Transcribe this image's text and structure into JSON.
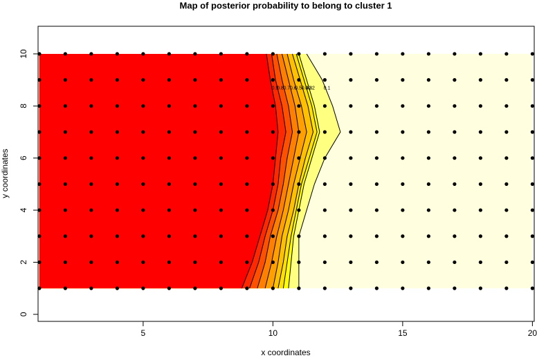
{
  "chart_data": {
    "type": "filled-contour",
    "title": "Map of posterior probability to belong to cluster  1",
    "x_label": "x coordinates",
    "y_label": "y coordinates",
    "xlim": [
      0.95,
      20.07
    ],
    "ylim": [
      -0.27,
      11.06
    ],
    "xticks": [
      5,
      10,
      15,
      20
    ],
    "yticks": [
      0,
      2,
      4,
      6,
      8,
      10
    ],
    "points_x": [
      1,
      2,
      3,
      4,
      5,
      6,
      7,
      8,
      9,
      10,
      11,
      12,
      13,
      14,
      15,
      16,
      17,
      18,
      19,
      20
    ],
    "points_y": [
      1,
      2,
      3,
      4,
      5,
      6,
      7,
      8,
      9,
      10
    ],
    "band_colors": [
      "#FFFFE0",
      "#FFFF80",
      "#FFFF00",
      "#FFE000",
      "#FFC000",
      "#FFA000",
      "#FF8000",
      "#FF5000",
      "#FF2800",
      "#FF0000"
    ],
    "contour_y": [
      1,
      2,
      3,
      4,
      5,
      6,
      7,
      8,
      9,
      10
    ],
    "contours": [
      {
        "level": 0.1,
        "x": [
          11.0,
          11.0,
          11.0,
          11.3,
          11.6,
          12.0,
          12.6,
          12.3,
          11.9,
          11.3
        ]
      },
      {
        "level": 0.2,
        "x": [
          10.6,
          10.7,
          10.8,
          11.0,
          11.2,
          11.5,
          11.8,
          11.6,
          11.3,
          11.0
        ]
      },
      {
        "level": 0.3,
        "x": [
          10.4,
          10.55,
          10.7,
          10.9,
          11.1,
          11.4,
          11.7,
          11.5,
          11.2,
          10.9
        ]
      },
      {
        "level": 0.4,
        "x": [
          10.2,
          10.4,
          10.55,
          10.8,
          11.0,
          11.25,
          11.55,
          11.35,
          11.05,
          10.75
        ]
      },
      {
        "level": 0.5,
        "x": [
          10.0,
          10.2,
          10.35,
          10.6,
          10.8,
          11.05,
          11.3,
          11.1,
          10.8,
          10.55
        ]
      },
      {
        "level": 0.6,
        "x": [
          9.7,
          9.95,
          10.15,
          10.4,
          10.6,
          10.8,
          11.0,
          10.85,
          10.6,
          10.35
        ]
      },
      {
        "level": 0.7,
        "x": [
          9.4,
          9.7,
          9.9,
          10.2,
          10.4,
          10.55,
          10.75,
          10.6,
          10.35,
          10.15
        ]
      },
      {
        "level": 0.8,
        "x": [
          9.1,
          9.45,
          9.7,
          10.0,
          10.2,
          10.3,
          10.5,
          10.35,
          10.1,
          9.95
        ]
      },
      {
        "level": 0.9,
        "x": [
          8.8,
          9.2,
          9.5,
          9.8,
          10.0,
          10.1,
          10.2,
          10.1,
          9.9,
          9.75
        ]
      }
    ]
  }
}
